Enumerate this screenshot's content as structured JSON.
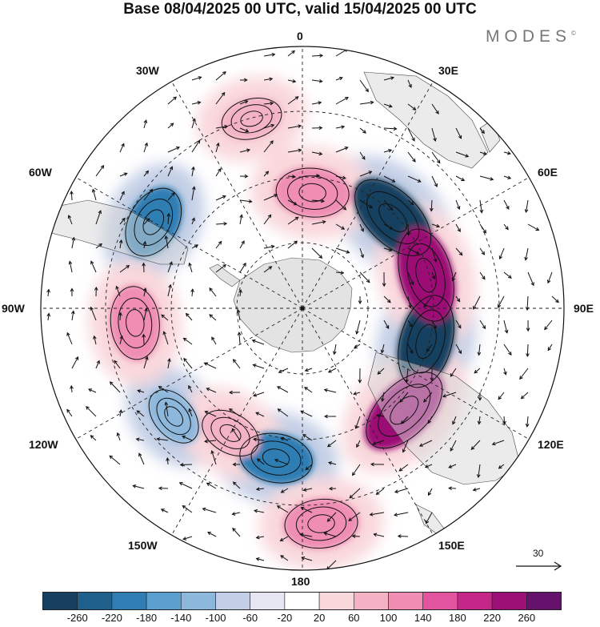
{
  "title": "Base 08/04/2025 00 UTC, valid 15/04/2025 00 UTC",
  "brand": "MODES",
  "brand_mark": "©",
  "longitude_labels": [
    "0",
    "30E",
    "60E",
    "90E",
    "120E",
    "150E",
    "180",
    "150W",
    "120W",
    "90W",
    "60W",
    "30W"
  ],
  "vector_reference": {
    "label": "30"
  },
  "colorbar": {
    "colors": [
      "#173f5f",
      "#1f5f8b",
      "#2f7db3",
      "#5a9fce",
      "#8db8dc",
      "#c3cfe6",
      "#e6e6f2",
      "#ffffff",
      "#f9d8dc",
      "#f3b3c4",
      "#ef8db2",
      "#e2549d",
      "#c42687",
      "#9b1075",
      "#64126b"
    ],
    "tick_labels": [
      "-260",
      "-220",
      "-180",
      "-140",
      "-100",
      "-60",
      "-20",
      "20",
      "60",
      "100",
      "140",
      "180",
      "220",
      "260"
    ]
  },
  "anomaly_features": [
    {
      "sign": "negative",
      "strength": "strong",
      "lon": "45E"
    },
    {
      "sign": "negative",
      "strength": "strong",
      "lon": "105E"
    },
    {
      "sign": "negative",
      "strength": "moderate",
      "lon": "60W"
    },
    {
      "sign": "negative",
      "strength": "moderate",
      "lon": "170W"
    },
    {
      "sign": "negative",
      "strength": "weak",
      "lon": "130W"
    },
    {
      "sign": "positive",
      "strength": "strong",
      "lon": "75E"
    },
    {
      "sign": "positive",
      "strength": "strong",
      "lon": "135E"
    },
    {
      "sign": "positive",
      "strength": "moderate",
      "lon": "95W"
    },
    {
      "sign": "positive",
      "strength": "moderate",
      "lon": "175E"
    },
    {
      "sign": "positive",
      "strength": "moderate",
      "lon": "5E"
    },
    {
      "sign": "positive",
      "strength": "weak",
      "lon": "15W"
    },
    {
      "sign": "positive",
      "strength": "weak",
      "lon": "150W"
    }
  ]
}
